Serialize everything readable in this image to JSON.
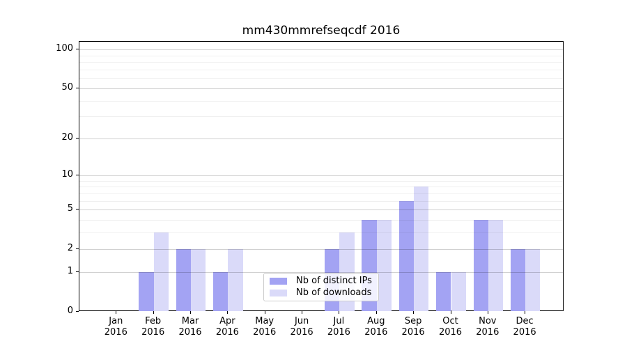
{
  "chart_data": {
    "type": "bar",
    "title": "mm430mmrefseqcdf 2016",
    "categories": [
      "Jan",
      "Feb",
      "Mar",
      "Apr",
      "May",
      "Jun",
      "Jul",
      "Aug",
      "Sep",
      "Oct",
      "Nov",
      "Dec"
    ],
    "x_tick_year": "2016",
    "series": [
      {
        "name": "Nb of distinct IPs",
        "color": "#a3a3f3",
        "values": [
          0,
          1,
          2,
          1,
          0,
          0,
          2,
          4,
          6,
          1,
          4,
          2
        ]
      },
      {
        "name": "Nb of downloads",
        "color": "#dadaf9",
        "values": [
          0,
          3,
          2,
          2,
          0,
          0,
          3,
          4,
          8,
          1,
          4,
          2
        ]
      }
    ],
    "y_scale": "log1p",
    "ylim": [
      0,
      115
    ],
    "y_ticks_major": [
      0,
      1,
      2,
      5,
      10,
      20,
      50,
      100
    ],
    "y_tick_labels": [
      "0",
      "1",
      "2",
      "5",
      "10",
      "20",
      "50",
      "100"
    ],
    "y_ticks_minor": [
      3,
      4,
      6,
      7,
      8,
      9,
      30,
      40,
      60,
      70,
      80,
      90
    ],
    "grid": true,
    "grid_above_bars": true,
    "legend_position": "lower-center-inside",
    "colors": {
      "bar_dark": "#a3a3f3",
      "bar_light": "#dadaf9",
      "grid_major": "rgba(0,0,0,0.18)",
      "grid_minor": "rgba(0,0,0,0.06)",
      "spine": "#000000"
    }
  }
}
